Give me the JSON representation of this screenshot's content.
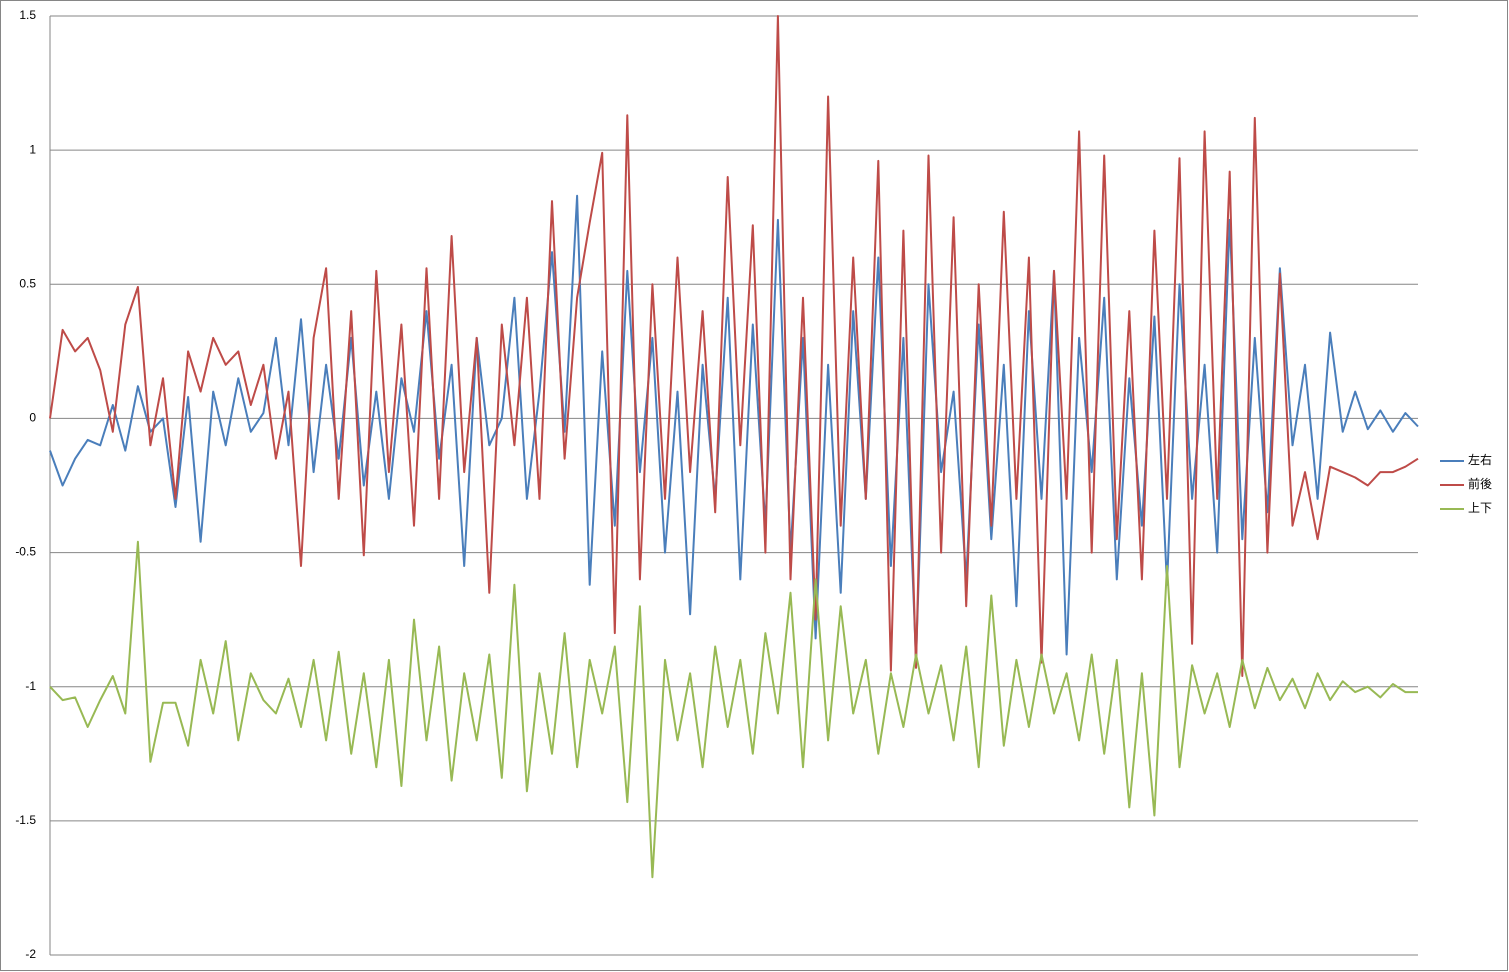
{
  "chart_data": {
    "type": "line",
    "ylim": [
      -2,
      1.5
    ],
    "yticks": [
      -2,
      -1.5,
      -1,
      -0.5,
      0,
      0.5,
      1,
      1.5
    ],
    "grid": true,
    "legend": "right",
    "series": [
      {
        "name": "左右",
        "color": "#4a7ebb",
        "values": [
          -0.12,
          -0.25,
          -0.15,
          -0.08,
          -0.1,
          0.05,
          -0.12,
          0.12,
          -0.05,
          0.0,
          -0.33,
          0.08,
          -0.46,
          0.1,
          -0.1,
          0.15,
          -0.05,
          0.02,
          0.3,
          -0.1,
          0.37,
          -0.2,
          0.2,
          -0.15,
          0.3,
          -0.25,
          0.1,
          -0.3,
          0.15,
          -0.05,
          0.4,
          -0.15,
          0.2,
          -0.55,
          0.3,
          -0.1,
          0.0,
          0.45,
          -0.3,
          0.1,
          0.62,
          -0.05,
          0.83,
          -0.62,
          0.25,
          -0.4,
          0.55,
          -0.2,
          0.3,
          -0.5,
          0.1,
          -0.73,
          0.2,
          -0.3,
          0.45,
          -0.6,
          0.35,
          -0.4,
          0.74,
          -0.5,
          0.3,
          -0.82,
          0.2,
          -0.65,
          0.4,
          -0.3,
          0.6,
          -0.55,
          0.3,
          -0.9,
          0.5,
          -0.2,
          0.1,
          -0.6,
          0.35,
          -0.45,
          0.2,
          -0.7,
          0.4,
          -0.3,
          0.55,
          -0.88,
          0.3,
          -0.2,
          0.45,
          -0.6,
          0.15,
          -0.4,
          0.38,
          -0.62,
          0.5,
          -0.3,
          0.2,
          -0.5,
          0.74,
          -0.45,
          0.3,
          -0.35,
          0.56,
          -0.1,
          0.2,
          -0.3,
          0.32,
          -0.05,
          0.1,
          -0.04,
          0.03,
          -0.05,
          0.02,
          -0.03
        ]
      },
      {
        "name": "前後",
        "color": "#be4b48",
        "values": [
          0.0,
          0.33,
          0.25,
          0.3,
          0.18,
          -0.05,
          0.35,
          0.49,
          -0.1,
          0.15,
          -0.3,
          0.25,
          0.1,
          0.3,
          0.2,
          0.25,
          0.05,
          0.2,
          -0.15,
          0.1,
          -0.55,
          0.3,
          0.56,
          -0.3,
          0.4,
          -0.51,
          0.55,
          -0.2,
          0.35,
          -0.4,
          0.56,
          -0.3,
          0.68,
          -0.2,
          0.3,
          -0.65,
          0.35,
          -0.1,
          0.45,
          -0.3,
          0.81,
          -0.15,
          0.45,
          0.73,
          0.99,
          -0.8,
          1.13,
          -0.6,
          0.5,
          -0.3,
          0.6,
          -0.2,
          0.4,
          -0.35,
          0.9,
          -0.1,
          0.72,
          -0.5,
          1.5,
          -0.6,
          0.45,
          -0.75,
          1.2,
          -0.4,
          0.6,
          -0.3,
          0.96,
          -0.94,
          0.7,
          -0.93,
          0.98,
          -0.5,
          0.75,
          -0.7,
          0.5,
          -0.4,
          0.77,
          -0.3,
          0.6,
          -0.91,
          0.55,
          -0.3,
          1.07,
          -0.5,
          0.98,
          -0.45,
          0.4,
          -0.6,
          0.7,
          -0.3,
          0.97,
          -0.84,
          1.07,
          -0.3,
          0.92,
          -0.96,
          1.12,
          -0.5,
          0.54,
          -0.4,
          -0.2,
          -0.45,
          -0.18,
          -0.2,
          -0.22,
          -0.25,
          -0.2,
          -0.2,
          -0.18,
          -0.15
        ]
      },
      {
        "name": "上下",
        "color": "#98b954",
        "values": [
          -1.0,
          -1.05,
          -1.04,
          -1.15,
          -1.05,
          -0.96,
          -1.1,
          -0.46,
          -1.28,
          -1.06,
          -1.06,
          -1.22,
          -0.9,
          -1.1,
          -0.83,
          -1.2,
          -0.95,
          -1.05,
          -1.1,
          -0.97,
          -1.15,
          -0.9,
          -1.2,
          -0.87,
          -1.25,
          -0.95,
          -1.3,
          -0.9,
          -1.37,
          -0.75,
          -1.2,
          -0.85,
          -1.35,
          -0.95,
          -1.2,
          -0.88,
          -1.34,
          -0.62,
          -1.39,
          -0.95,
          -1.25,
          -0.8,
          -1.3,
          -0.9,
          -1.1,
          -0.85,
          -1.43,
          -0.7,
          -1.71,
          -0.9,
          -1.2,
          -0.95,
          -1.3,
          -0.85,
          -1.15,
          -0.9,
          -1.25,
          -0.8,
          -1.1,
          -0.65,
          -1.3,
          -0.6,
          -1.2,
          -0.7,
          -1.1,
          -0.9,
          -1.25,
          -0.95,
          -1.15,
          -0.88,
          -1.1,
          -0.92,
          -1.2,
          -0.85,
          -1.3,
          -0.66,
          -1.22,
          -0.9,
          -1.15,
          -0.88,
          -1.1,
          -0.95,
          -1.2,
          -0.88,
          -1.25,
          -0.9,
          -1.45,
          -0.95,
          -1.48,
          -0.55,
          -1.3,
          -0.92,
          -1.1,
          -0.95,
          -1.15,
          -0.9,
          -1.08,
          -0.93,
          -1.05,
          -0.97,
          -1.08,
          -0.95,
          -1.05,
          -0.98,
          -1.02,
          -1.0,
          -1.04,
          -0.99,
          -1.02,
          -1.02
        ]
      }
    ]
  }
}
